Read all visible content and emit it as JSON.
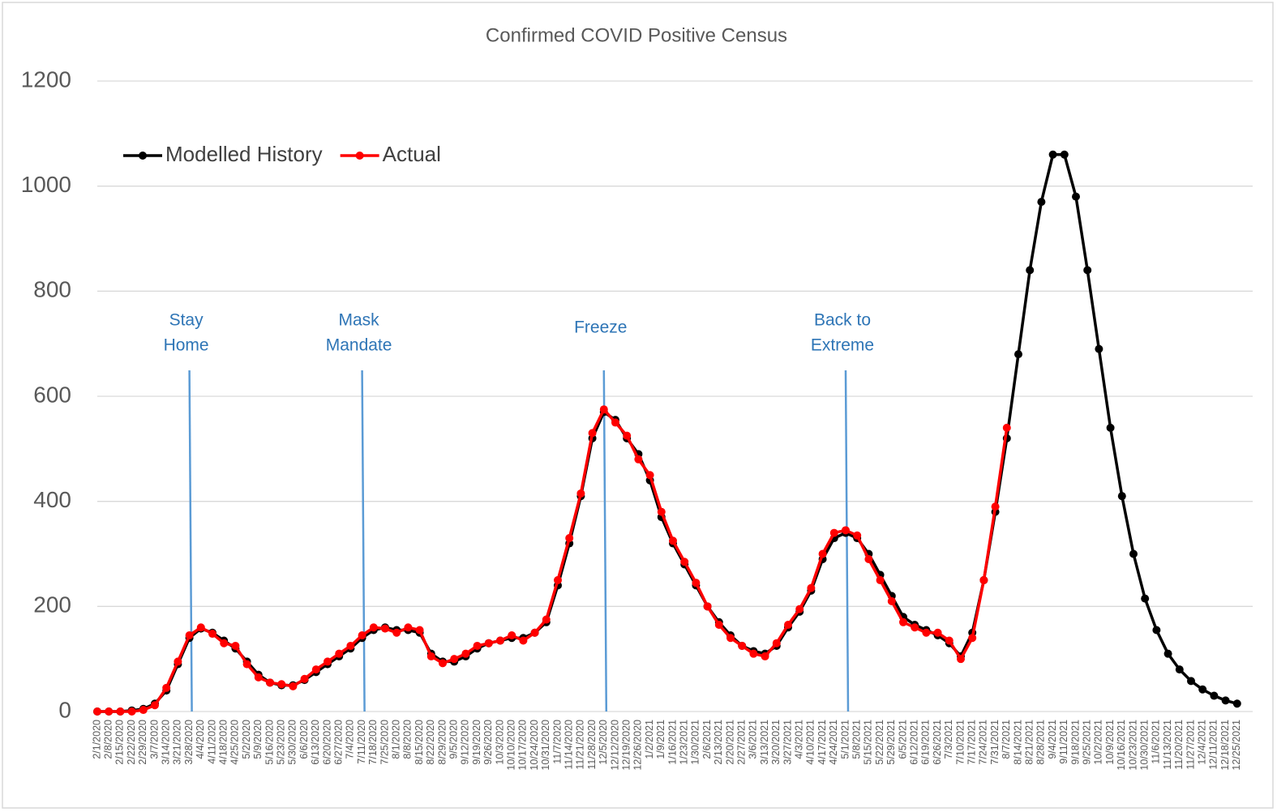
{
  "chart_data": {
    "type": "line",
    "title": "Confirmed COVID Positive Census",
    "categories": [
      "2/1/2020",
      "2/8/2020",
      "2/15/2020",
      "2/22/2020",
      "2/29/2020",
      "3/7/2020",
      "3/14/2020",
      "3/21/2020",
      "3/28/2020",
      "4/4/2020",
      "4/11/2020",
      "4/18/2020",
      "4/25/2020",
      "5/2/2020",
      "5/9/2020",
      "5/16/2020",
      "5/23/2020",
      "5/30/2020",
      "6/6/2020",
      "6/13/2020",
      "6/20/2020",
      "6/27/2020",
      "7/4/2020",
      "7/11/2020",
      "7/18/2020",
      "7/25/2020",
      "8/1/2020",
      "8/8/2020",
      "8/15/2020",
      "8/22/2020",
      "8/29/2020",
      "9/5/2020",
      "9/12/2020",
      "9/19/2020",
      "9/26/2020",
      "10/3/2020",
      "10/10/2020",
      "10/17/2020",
      "10/24/2020",
      "10/31/2020",
      "11/7/2020",
      "11/14/2020",
      "11/21/2020",
      "11/28/2020",
      "12/5/2020",
      "12/12/2020",
      "12/19/2020",
      "12/26/2020",
      "1/2/2021",
      "1/9/2021",
      "1/16/2021",
      "1/23/2021",
      "1/30/2021",
      "2/6/2021",
      "2/13/2021",
      "2/20/2021",
      "2/27/2021",
      "3/6/2021",
      "3/13/2021",
      "3/20/2021",
      "3/27/2021",
      "4/3/2021",
      "4/10/2021",
      "4/17/2021",
      "4/24/2021",
      "5/1/2021",
      "5/8/2021",
      "5/15/2021",
      "5/22/2021",
      "5/29/2021",
      "6/5/2021",
      "6/12/2021",
      "6/19/2021",
      "6/26/2021",
      "7/3/2021",
      "7/10/2021",
      "7/17/2021",
      "7/24/2021",
      "7/31/2021",
      "8/7/2021",
      "8/14/2021",
      "8/21/2021",
      "8/28/2021",
      "9/4/2021",
      "9/11/2021",
      "9/18/2021",
      "9/25/2021",
      "10/2/2021",
      "10/9/2021",
      "10/16/2021",
      "10/23/2021",
      "10/30/2021",
      "11/6/2021",
      "11/13/2021",
      "11/20/2021",
      "11/27/2021",
      "12/4/2021",
      "12/11/2021",
      "12/18/2021",
      "12/25/2021"
    ],
    "series": [
      {
        "name": "Modelled History",
        "color": "#000000",
        "values": [
          0,
          0,
          0,
          2,
          5,
          15,
          40,
          90,
          140,
          158,
          150,
          135,
          120,
          95,
          70,
          55,
          50,
          50,
          60,
          75,
          90,
          105,
          120,
          140,
          155,
          160,
          155,
          155,
          150,
          110,
          95,
          95,
          105,
          120,
          130,
          135,
          140,
          140,
          150,
          170,
          240,
          320,
          410,
          520,
          570,
          555,
          520,
          490,
          440,
          370,
          320,
          280,
          240,
          200,
          170,
          145,
          125,
          115,
          110,
          125,
          160,
          190,
          230,
          290,
          330,
          340,
          330,
          300,
          260,
          220,
          180,
          165,
          155,
          145,
          130,
          105,
          150,
          250,
          380,
          520,
          680,
          840,
          970,
          1060,
          1060,
          980,
          840,
          690,
          540,
          410,
          300,
          215,
          155,
          110,
          80,
          58,
          42,
          30,
          21,
          15
        ]
      },
      {
        "name": "Actual",
        "color": "#ff0000",
        "values": [
          0,
          0,
          0,
          0,
          3,
          12,
          45,
          95,
          145,
          160,
          148,
          130,
          125,
          90,
          65,
          55,
          52,
          48,
          62,
          80,
          95,
          110,
          125,
          145,
          160,
          158,
          150,
          160,
          155,
          105,
          92,
          100,
          110,
          125,
          130,
          135,
          145,
          135,
          150,
          175,
          250,
          330,
          415,
          530,
          575,
          550,
          525,
          480,
          450,
          380,
          325,
          285,
          245,
          200,
          165,
          140,
          125,
          110,
          105,
          130,
          165,
          195,
          235,
          300,
          340,
          345,
          335,
          290,
          250,
          210,
          170,
          160,
          150,
          150,
          135,
          100,
          140,
          250,
          390,
          540,
          null,
          null,
          null,
          null,
          null,
          null,
          null,
          null,
          null,
          null,
          null,
          null,
          null,
          null,
          null,
          null,
          null,
          null,
          null,
          null
        ]
      }
    ],
    "ylim": [
      0,
      1200
    ],
    "yticks": [
      0,
      200,
      400,
      600,
      800,
      1000,
      1200
    ],
    "grid": true,
    "legend": "top-left",
    "annotations": [
      {
        "text": [
          "Stay",
          "Home"
        ],
        "category": "3/28/2020",
        "color": "#5b9bd5"
      },
      {
        "text": [
          "Mask",
          "Mandate"
        ],
        "category": "7/11/2020",
        "color": "#5b9bd5"
      },
      {
        "text": [
          "Freeze"
        ],
        "category": "12/5/2020",
        "color": "#5b9bd5"
      },
      {
        "text": [
          "Back to",
          "Extreme"
        ],
        "category": "5/1/2021",
        "color": "#5b9bd5"
      }
    ]
  }
}
